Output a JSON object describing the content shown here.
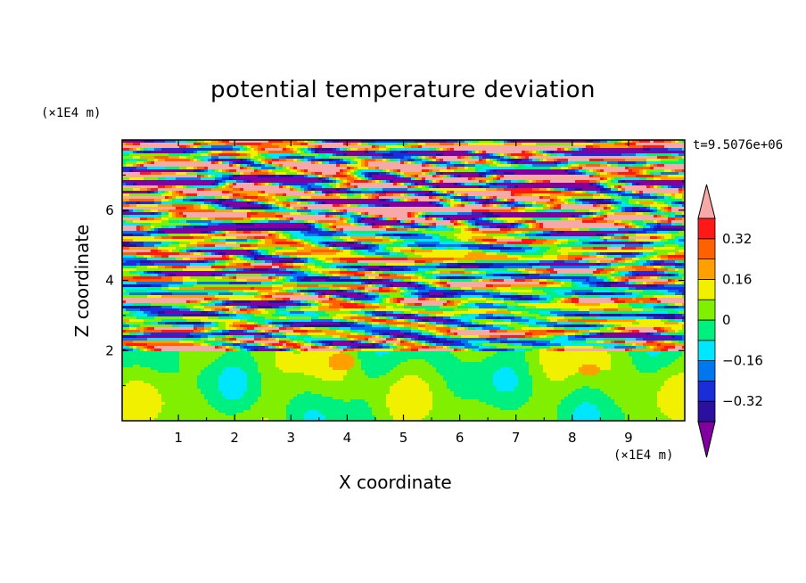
{
  "chart_data": {
    "type": "heatmap",
    "title": "potential temperature deviation",
    "xlabel": "X coordinate",
    "ylabel": "Z coordinate",
    "x_unit": "(×1E4 m)",
    "y_unit": "(×1E4 m)",
    "time_label": "t=9.5076e+06",
    "xlim": [
      0,
      10
    ],
    "ylim": [
      0,
      8
    ],
    "x_ticks": [
      "1",
      "2",
      "3",
      "4",
      "5",
      "6",
      "7",
      "8",
      "9"
    ],
    "y_ticks": [
      "2",
      "4",
      "6"
    ],
    "colorbar": {
      "levels": [
        -0.4,
        -0.32,
        -0.24,
        -0.16,
        -0.08,
        0,
        0.08,
        0.16,
        0.24,
        0.32,
        0.4
      ],
      "tick_labels": [
        "0.32",
        "0.16",
        "0",
        "−0.16",
        "−0.32"
      ],
      "tick_values": [
        0.32,
        0.16,
        0,
        -0.16,
        -0.32
      ],
      "colors": [
        "#8000a0",
        "#2b0fa0",
        "#1b2dd8",
        "#0077ee",
        "#00e6ff",
        "#00f080",
        "#80f000",
        "#f0f000",
        "#ffa000",
        "#ff6000",
        "#ff1818",
        "#f7a8a8"
      ],
      "extend": "both"
    },
    "layers": [
      {
        "z": [
          0,
          2.0
        ],
        "description_value": 0.02,
        "note_value_range": [
          -0.08,
          0.16
        ]
      },
      {
        "z": [
          2.0,
          5.4
        ],
        "value_range": [
          -0.4,
          0.4
        ]
      },
      {
        "z": [
          5.4,
          7.9
        ],
        "value_range": [
          -0.4,
          0.4
        ]
      }
    ]
  }
}
